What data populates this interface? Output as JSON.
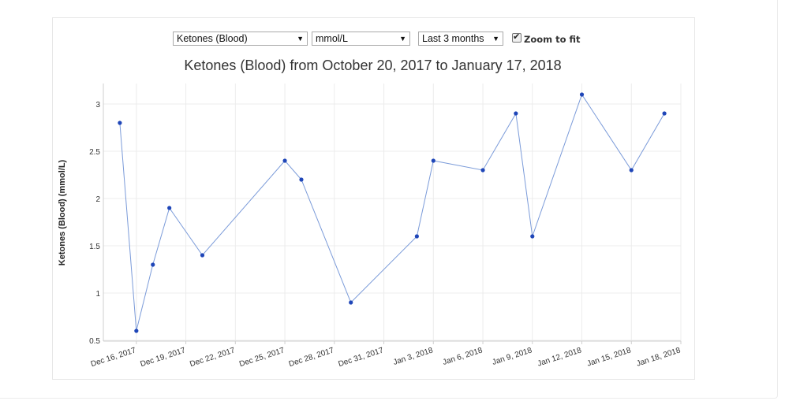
{
  "controls": {
    "measure_select": "Ketones (Blood)",
    "unit_select": "mmol/L",
    "range_select": "Last 3 months",
    "zoom_label": "Zoom to fit",
    "zoom_checked": true
  },
  "chart_data": {
    "type": "line",
    "title": "Ketones (Blood) from October 20, 2017 to January 17, 2018",
    "ylabel": "Ketones (Blood) (mmol/L)",
    "xlabel": "",
    "ylim": [
      0.5,
      3.2
    ],
    "y_ticks": [
      {
        "value": 0.5,
        "label": "0.5"
      },
      {
        "value": 1,
        "label": "1"
      },
      {
        "value": 1.5,
        "label": "1.5"
      },
      {
        "value": 2,
        "label": "2"
      },
      {
        "value": 2.5,
        "label": "2.5"
      },
      {
        "value": 3,
        "label": "3"
      }
    ],
    "xlim": [
      "2017-12-14",
      "2018-01-18"
    ],
    "x_ticks": [
      {
        "value": "2017-12-16",
        "label": "Dec 16, 2017"
      },
      {
        "value": "2017-12-19",
        "label": "Dec 19, 2017"
      },
      {
        "value": "2017-12-22",
        "label": "Dec 22, 2017"
      },
      {
        "value": "2017-12-25",
        "label": "Dec 25, 2017"
      },
      {
        "value": "2017-12-28",
        "label": "Dec 28, 2017"
      },
      {
        "value": "2017-12-31",
        "label": "Dec 31, 2017"
      },
      {
        "value": "2018-01-03",
        "label": "Jan 3, 2018"
      },
      {
        "value": "2018-01-06",
        "label": "Jan 6, 2018"
      },
      {
        "value": "2018-01-09",
        "label": "Jan 9, 2018"
      },
      {
        "value": "2018-01-12",
        "label": "Jan 12, 2018"
      },
      {
        "value": "2018-01-15",
        "label": "Jan 15, 2018"
      },
      {
        "value": "2018-01-18",
        "label": "Jan 18, 2018"
      }
    ],
    "grid": true,
    "colors": {
      "line": "#7b9bd9",
      "point": "#1f46b8",
      "grid": "#ececec",
      "axis": "#cfcfcf"
    },
    "series": [
      {
        "points": [
          {
            "x": "2017-12-15",
            "y": 2.8
          },
          {
            "x": "2017-12-16",
            "y": 0.6
          },
          {
            "x": "2017-12-17",
            "y": 1.3
          },
          {
            "x": "2017-12-18",
            "y": 1.9
          },
          {
            "x": "2017-12-20",
            "y": 1.4
          },
          {
            "x": "2017-12-25",
            "y": 2.4
          },
          {
            "x": "2017-12-26",
            "y": 2.2
          },
          {
            "x": "2017-12-29",
            "y": 0.9
          },
          {
            "x": "2018-01-02",
            "y": 1.6
          },
          {
            "x": "2018-01-03",
            "y": 2.4
          },
          {
            "x": "2018-01-06",
            "y": 2.3
          },
          {
            "x": "2018-01-08",
            "y": 2.9
          },
          {
            "x": "2018-01-09",
            "y": 1.6
          },
          {
            "x": "2018-01-12",
            "y": 3.1
          },
          {
            "x": "2018-01-15",
            "y": 2.3
          },
          {
            "x": "2018-01-17",
            "y": 2.9
          }
        ]
      }
    ]
  }
}
